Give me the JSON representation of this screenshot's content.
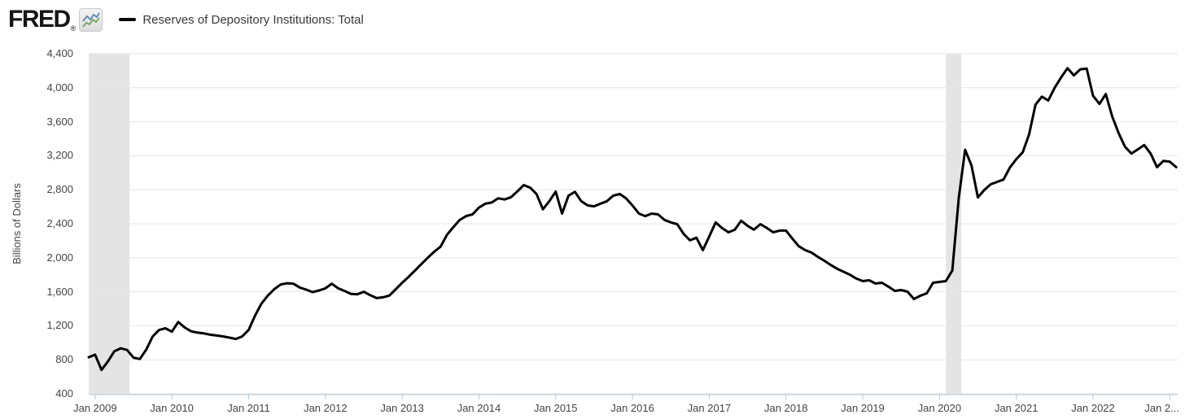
{
  "header": {
    "logo_text": "FRED",
    "logo_registered": "®",
    "series_title": "Reserves of Depository Institutions: Total"
  },
  "y_axis": {
    "title": "Billions of Dollars",
    "ticks": [
      "4,400",
      "4,000",
      "3,600",
      "3,200",
      "2,800",
      "2,400",
      "2,000",
      "1,600",
      "1,200",
      "800",
      "400"
    ]
  },
  "x_axis": {
    "labels": [
      "Jan 2009",
      "Jan 2010",
      "Jan 2011",
      "Jan 2012",
      "Jan 2013",
      "Jan 2014",
      "Jan 2015",
      "Jan 2016",
      "Jan 2017",
      "Jan 2018",
      "Jan 2019",
      "Jan 2020",
      "Jan 2021",
      "Jan 2022",
      "Jan 2..."
    ],
    "months": [
      "2009-01",
      "2010-01",
      "2011-01",
      "2012-01",
      "2013-01",
      "2014-01",
      "2015-01",
      "2016-01",
      "2017-01",
      "2018-01",
      "2019-01",
      "2020-01",
      "2021-01",
      "2022-01",
      "2023-01"
    ]
  },
  "chart_data": {
    "type": "line",
    "title": "Reserves of Depository Institutions: Total",
    "ylabel": "Billions of Dollars",
    "unit": "billions of dollars",
    "frequency": "monthly",
    "start_month": "2008-12",
    "end_month": "2023-02",
    "y_min": 400,
    "y_max": 4400,
    "grid_step": 400,
    "legend_position": "top",
    "grid": "horizontal",
    "values": [
      830,
      860,
      680,
      780,
      900,
      935,
      915,
      825,
      810,
      920,
      1075,
      1150,
      1170,
      1130,
      1245,
      1180,
      1135,
      1120,
      1110,
      1095,
      1085,
      1075,
      1060,
      1045,
      1075,
      1150,
      1320,
      1460,
      1555,
      1630,
      1685,
      1700,
      1695,
      1650,
      1625,
      1595,
      1615,
      1640,
      1695,
      1640,
      1610,
      1575,
      1570,
      1600,
      1560,
      1525,
      1535,
      1555,
      1630,
      1705,
      1775,
      1850,
      1925,
      2000,
      2070,
      2130,
      2270,
      2360,
      2445,
      2490,
      2510,
      2590,
      2635,
      2650,
      2700,
      2685,
      2712,
      2780,
      2855,
      2825,
      2750,
      2570,
      2665,
      2778,
      2520,
      2730,
      2775,
      2665,
      2615,
      2605,
      2635,
      2665,
      2730,
      2750,
      2700,
      2615,
      2520,
      2490,
      2520,
      2510,
      2445,
      2415,
      2395,
      2280,
      2205,
      2235,
      2090,
      2250,
      2415,
      2350,
      2300,
      2330,
      2435,
      2375,
      2330,
      2395,
      2350,
      2300,
      2320,
      2320,
      2225,
      2135,
      2090,
      2060,
      2010,
      1965,
      1915,
      1870,
      1835,
      1800,
      1755,
      1725,
      1735,
      1697,
      1706,
      1660,
      1611,
      1620,
      1601,
      1515,
      1553,
      1582,
      1706,
      1716,
      1725,
      1850,
      2700,
      3270,
      3085,
      2710,
      2797,
      2864,
      2892,
      2920,
      3060,
      3160,
      3240,
      3450,
      3800,
      3895,
      3850,
      4000,
      4120,
      4230,
      4145,
      4215,
      4225,
      3905,
      3810,
      3925,
      3660,
      3465,
      3305,
      3225,
      3275,
      3325,
      3225,
      3065,
      3140,
      3130,
      3065
    ],
    "recession_bands": [
      {
        "start": "2008-12",
        "end": "2009-06"
      },
      {
        "start": "2020-02",
        "end": "2020-04"
      }
    ],
    "colors": {
      "line": "#000000",
      "recession_band": "#e4e4e4",
      "gridline": "#e6e6e6",
      "axis": "#b3c6d6",
      "tick_label": "#444444"
    }
  }
}
